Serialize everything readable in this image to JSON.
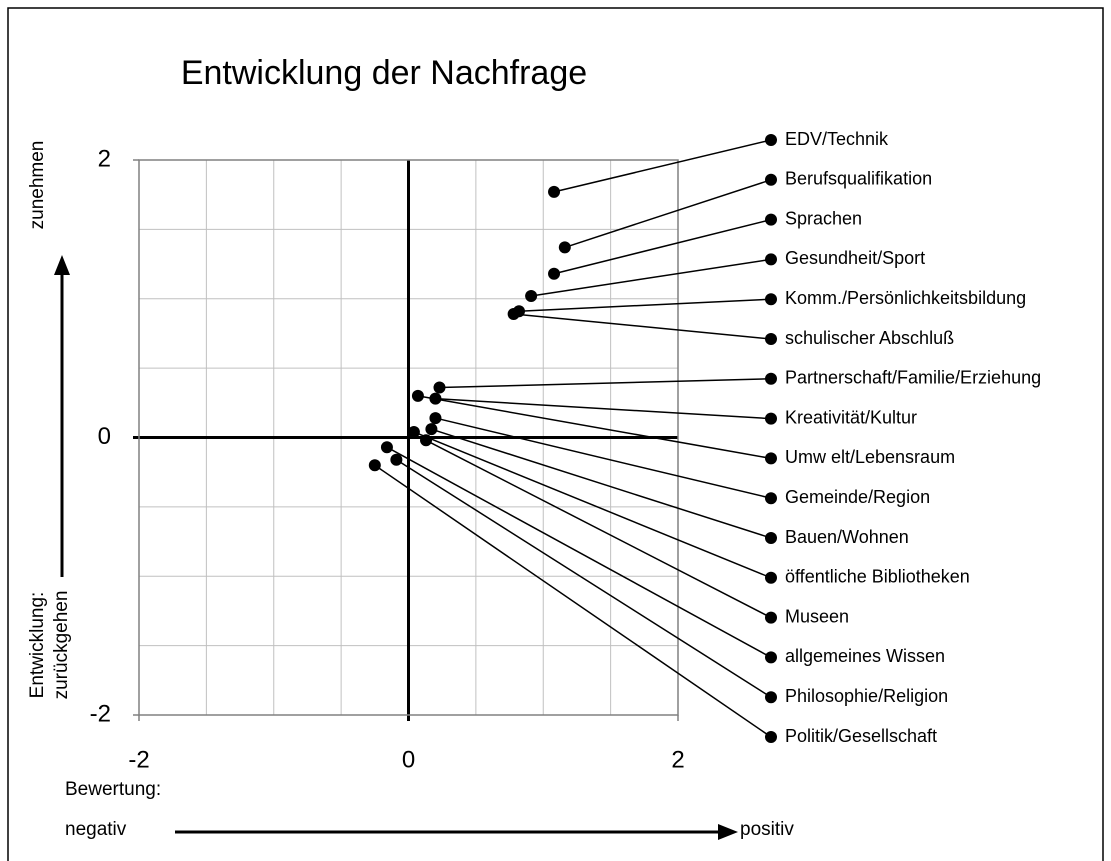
{
  "chart_data": {
    "type": "scatter",
    "title": "Entwicklung der Nachfrage",
    "y_label_top": "zunehmen",
    "y_label_bottom": [
      "Entwicklung:",
      "zurückgehen"
    ],
    "x_label_left": [
      "Bewertung:",
      "negativ"
    ],
    "x_label_right": "positiv",
    "xlim": [
      -2,
      2
    ],
    "ylim": [
      -2,
      2
    ],
    "xticks": [
      -2,
      0,
      2
    ],
    "yticks": [
      -2,
      0,
      2
    ],
    "xgrid": [
      -1.5,
      -1,
      -0.5,
      0.5,
      1,
      1.5
    ],
    "ygrid": [
      -1.5,
      -1,
      -0.5,
      0.5,
      1,
      1.5
    ],
    "grid": true,
    "color": "#000000",
    "labels": [
      "EDV/Technik",
      "Berufsqualifikation",
      "Sprachen",
      "Gesundheit/Sport",
      "Komm./Persönlichkeitsbildung",
      "schulischer Abschluß",
      "Partnerschaft/Familie/Erziehung",
      "Kreativität/Kultur",
      "Umw elt/Lebensraum",
      "Gemeinde/Region",
      "Bauen/Wohnen",
      "öffentliche Bibliotheken",
      "Museen",
      "allgemeines Wissen",
      "Philosophie/Religion",
      "Politik/Gesellschaft"
    ],
    "x": [
      1.08,
      1.16,
      1.08,
      0.91,
      0.82,
      0.78,
      0.23,
      0.2,
      0.07,
      0.2,
      0.17,
      0.04,
      0.13,
      -0.16,
      -0.09,
      -0.25
    ],
    "y": [
      1.77,
      1.37,
      1.18,
      1.02,
      0.91,
      0.89,
      0.36,
      0.28,
      0.3,
      0.14,
      0.06,
      0.04,
      -0.02,
      -0.07,
      -0.16,
      -0.2
    ]
  }
}
